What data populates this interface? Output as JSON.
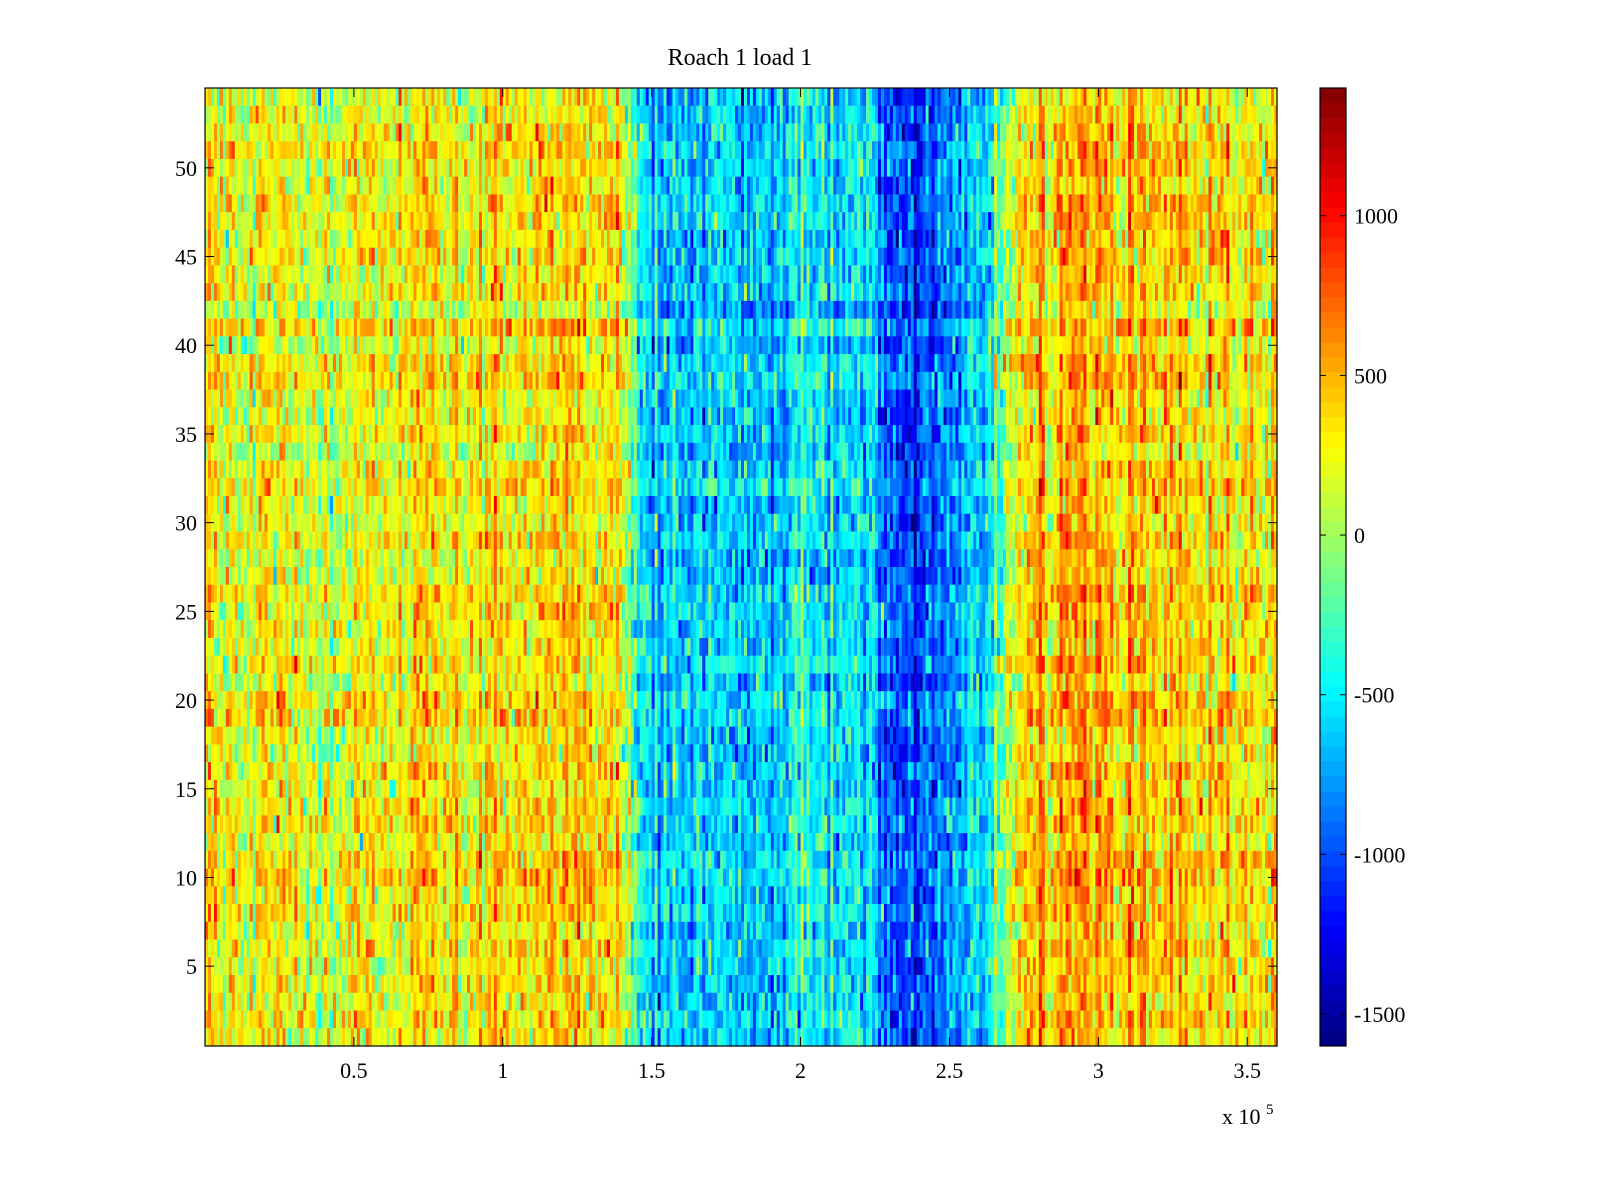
{
  "chart_data": {
    "type": "heatmap",
    "title": "Roach 1 load 1",
    "xlabel": "",
    "ylabel": "",
    "x_exponent_label": {
      "base": "x 10",
      "exponent": "5"
    },
    "xlim": [
      0,
      360000
    ],
    "ylim": [
      0.5,
      54.5
    ],
    "n_rows": 54,
    "xticks": [
      50000,
      100000,
      150000,
      200000,
      250000,
      300000,
      350000
    ],
    "xtick_labels": [
      "0.5",
      "1",
      "1.5",
      "2",
      "2.5",
      "3",
      "3.5"
    ],
    "yticks": [
      5,
      10,
      15,
      20,
      25,
      30,
      35,
      40,
      45,
      50
    ],
    "ytick_labels": [
      "5",
      "10",
      "15",
      "20",
      "25",
      "30",
      "35",
      "40",
      "45",
      "50"
    ],
    "colormap": "jet",
    "clim": [
      -1600,
      1400
    ],
    "colorbar": {
      "placement": "right",
      "ticks": [
        1000,
        500,
        0,
        -500,
        -1000,
        -1500
      ],
      "tick_labels": [
        "1000",
        "500",
        "0",
        "-500",
        "-1000",
        "-1500"
      ]
    },
    "column_profile": {
      "x": [
        0,
        20000,
        40000,
        60000,
        80000,
        100000,
        120000,
        130000,
        138000,
        143000,
        150000,
        170000,
        185000,
        200000,
        215000,
        225000,
        232000,
        240000,
        250000,
        260000,
        268000,
        275000,
        290000,
        310000,
        330000,
        350000,
        360000
      ],
      "mean_value": [
        250,
        230,
        170,
        190,
        300,
        250,
        320,
        380,
        380,
        -300,
        -620,
        -560,
        -700,
        -500,
        -560,
        -700,
        -900,
        -1000,
        -820,
        -560,
        -100,
        400,
        520,
        470,
        320,
        300,
        380
      ]
    },
    "grid": false
  }
}
